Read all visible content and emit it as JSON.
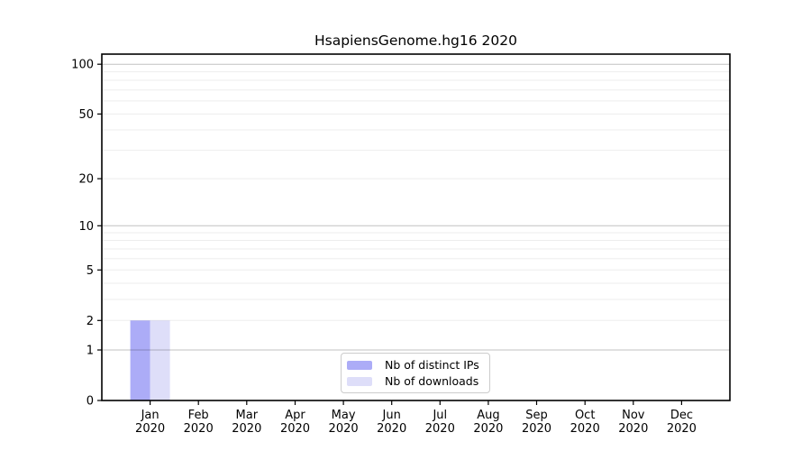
{
  "page": {
    "background_color": "#ffffff"
  },
  "chart_data": {
    "type": "bar",
    "title": "HsapiensGenome.hg16 2020",
    "categories": [
      "Jan",
      "Feb",
      "Mar",
      "Apr",
      "May",
      "Jun",
      "Jul",
      "Aug",
      "Sep",
      "Oct",
      "Nov",
      "Dec"
    ],
    "category_sublabel": "2020",
    "series": [
      {
        "name": "Nb of distinct IPs",
        "color": "#acacf7",
        "values": [
          2,
          0,
          0,
          0,
          0,
          0,
          0,
          0,
          0,
          0,
          0,
          0
        ]
      },
      {
        "name": "Nb of downloads",
        "color": "#dedef9",
        "values": [
          2,
          0,
          0,
          0,
          0,
          0,
          0,
          0,
          0,
          0,
          0,
          0
        ]
      }
    ],
    "xlabel": "",
    "ylabel": "",
    "yscale": "log1p",
    "ylim": [
      0,
      115
    ],
    "yticks": [
      0,
      1,
      2,
      5,
      10,
      20,
      50,
      100
    ],
    "major_grid_values": [
      1,
      10,
      100
    ],
    "minor_grid_values": [
      2,
      3,
      4,
      5,
      6,
      7,
      8,
      9,
      20,
      30,
      40,
      50,
      60,
      70,
      80,
      90
    ],
    "grid": "horizontal",
    "legend_position": "inside-bottom-center",
    "colors": {
      "axis": "#000000",
      "text": "#000000",
      "major_grid": "#c2c2c2",
      "minor_grid": "#ededed",
      "legend_border": "#cccccc"
    }
  }
}
